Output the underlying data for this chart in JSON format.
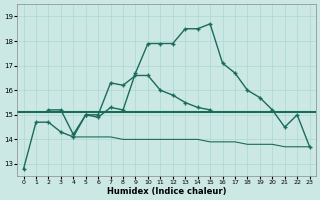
{
  "xlabel": "Humidex (Indice chaleur)",
  "x_values": [
    0,
    1,
    2,
    3,
    4,
    5,
    6,
    7,
    8,
    9,
    10,
    11,
    12,
    13,
    14,
    15,
    16,
    17,
    18,
    19,
    20,
    21,
    22,
    23
  ],
  "line1_y": [
    12.8,
    14.7,
    14.7,
    14.3,
    14.1,
    15.0,
    14.9,
    15.3,
    15.2,
    16.7,
    17.9,
    17.9,
    17.9,
    18.5,
    18.5,
    18.7,
    17.1,
    16.7,
    16.0,
    15.7,
    15.2,
    14.5,
    15.0,
    13.7
  ],
  "line2_y": [
    null,
    null,
    15.2,
    15.2,
    14.2,
    15.0,
    15.0,
    16.3,
    16.2,
    16.6,
    16.6,
    16.0,
    15.8,
    15.5,
    15.3,
    15.2,
    null,
    null,
    null,
    null,
    null,
    null,
    null,
    null
  ],
  "line3_y": [
    null,
    null,
    null,
    null,
    14.1,
    14.1,
    14.1,
    14.1,
    14.0,
    14.0,
    14.0,
    14.0,
    14.0,
    14.0,
    14.0,
    13.9,
    13.9,
    13.9,
    13.8,
    13.8,
    13.8,
    13.7,
    13.7,
    13.7
  ],
  "hline_y": 15.1,
  "ylim": [
    12.5,
    19.5
  ],
  "xlim": [
    -0.5,
    23.5
  ],
  "yticks": [
    13,
    14,
    15,
    16,
    17,
    18,
    19
  ],
  "xticks": [
    0,
    1,
    2,
    3,
    4,
    5,
    6,
    7,
    8,
    9,
    10,
    11,
    12,
    13,
    14,
    15,
    16,
    17,
    18,
    19,
    20,
    21,
    22,
    23
  ],
  "bg_color": "#cce8e4",
  "grid_color": "#aad8d4",
  "line_color": "#1a6b5a",
  "line_width": 1.0,
  "marker_size": 3.5
}
